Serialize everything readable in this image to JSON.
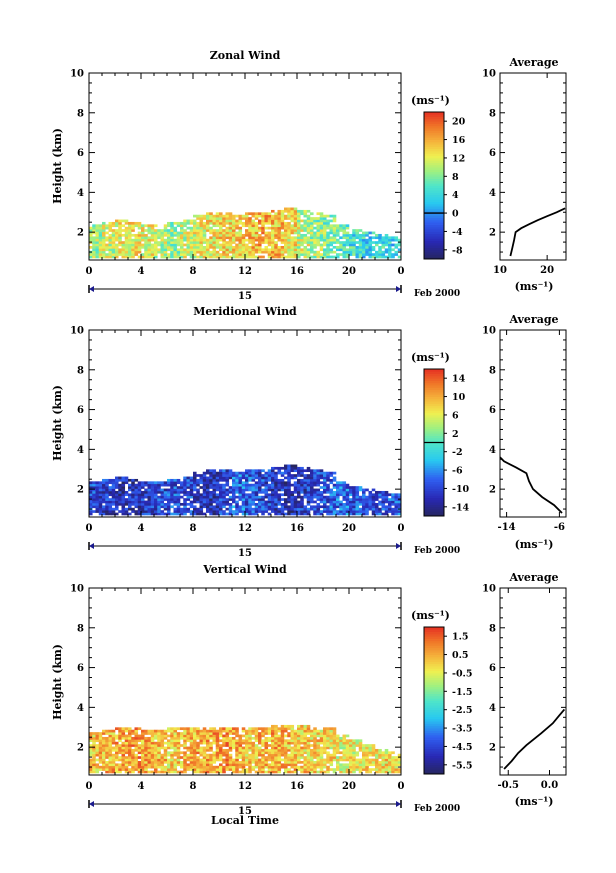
{
  "chart_data": [
    {
      "type": "heatmap",
      "title": "Zonal Wind",
      "ylabel": "Height (km)",
      "ylim": [
        0.6,
        10
      ],
      "yticks": [
        "2",
        "4",
        "6",
        "8",
        "10"
      ],
      "xlim": [
        0,
        24
      ],
      "xticks": [
        "0",
        "4",
        "8",
        "12",
        "16",
        "20",
        "0"
      ],
      "date_label": "15",
      "month_label": "Feb 2000",
      "colorbar": {
        "unit": "(ms⁻¹)",
        "min": -10,
        "max": 22,
        "ticks": [
          "-8",
          "-4",
          "0",
          "4",
          "8",
          "12",
          "16",
          "20"
        ],
        "marker": 0
      },
      "data_top_km": [
        2.4,
        2.6,
        2.7,
        2.6,
        2.5,
        2.5,
        2.6,
        2.7,
        2.9,
        3.0,
        3.0,
        2.9,
        3.0,
        3.1,
        3.2,
        3.3,
        3.2,
        3.1,
        2.9,
        2.5,
        2.2,
        2.1,
        2.0,
        1.9
      ],
      "typical_values": [
        10,
        11,
        12,
        13,
        12,
        10,
        9,
        11,
        12,
        13,
        14,
        14,
        15,
        16,
        15,
        13,
        11,
        9,
        8,
        6,
        5,
        4,
        4,
        3
      ],
      "average": {
        "title": "Average",
        "xlabel": "(ms⁻¹)",
        "xlim": [
          10,
          24
        ],
        "xticks": [
          "10",
          "20"
        ],
        "ylim": [
          0.6,
          10
        ],
        "yticks": [
          "2",
          "4",
          "6",
          "8",
          "10"
        ],
        "profile": [
          [
            12.2,
            0.8
          ],
          [
            12.6,
            1.2
          ],
          [
            13.0,
            1.6
          ],
          [
            13.3,
            2.0
          ],
          [
            14.5,
            2.2
          ],
          [
            16.2,
            2.4
          ],
          [
            18.0,
            2.6
          ],
          [
            20.0,
            2.8
          ],
          [
            22.0,
            3.0
          ],
          [
            23.8,
            3.2
          ]
        ]
      }
    },
    {
      "type": "heatmap",
      "title": "Meridional Wind",
      "ylabel": "Height (km)",
      "ylim": [
        0.6,
        10
      ],
      "yticks": [
        "2",
        "4",
        "6",
        "8",
        "10"
      ],
      "xlim": [
        0,
        24
      ],
      "xticks": [
        "0",
        "4",
        "8",
        "12",
        "16",
        "20",
        "0"
      ],
      "date_label": "15",
      "month_label": "Feb 2000",
      "colorbar": {
        "unit": "(ms⁻¹)",
        "min": -16,
        "max": 16,
        "ticks": [
          "-14",
          "-10",
          "-6",
          "-2",
          "2",
          "6",
          "10",
          "14"
        ],
        "marker": 0
      },
      "data_top_km": [
        2.4,
        2.6,
        2.7,
        2.6,
        2.5,
        2.5,
        2.6,
        2.7,
        2.9,
        3.0,
        3.0,
        2.9,
        3.0,
        3.1,
        3.2,
        3.3,
        3.2,
        3.1,
        2.9,
        2.5,
        2.2,
        2.1,
        2.0,
        1.9
      ],
      "typical_values": [
        -10,
        -11,
        -12,
        -12,
        -11,
        -10,
        -9,
        -10,
        -11,
        -12,
        -10,
        -8,
        -9,
        -10,
        -11,
        -12,
        -11,
        -10,
        -9,
        -8,
        -9,
        -10,
        -10,
        -9
      ],
      "average": {
        "title": "Average",
        "xlabel": "(ms⁻¹)",
        "xlim": [
          -15,
          -5
        ],
        "xticks": [
          "-14",
          "-6"
        ],
        "ylim": [
          0.6,
          10
        ],
        "yticks": [
          "2",
          "4",
          "6",
          "8",
          "10"
        ],
        "profile": [
          [
            -5.6,
            0.8
          ],
          [
            -6.8,
            1.2
          ],
          [
            -8.6,
            1.6
          ],
          [
            -10.0,
            2.0
          ],
          [
            -10.6,
            2.4
          ],
          [
            -11.0,
            2.8
          ],
          [
            -12.6,
            3.1
          ],
          [
            -14.4,
            3.4
          ],
          [
            -15.0,
            3.6
          ]
        ]
      }
    },
    {
      "type": "heatmap",
      "title": "Vertical Wind",
      "ylabel": "Height (km)",
      "ylim": [
        0.6,
        10
      ],
      "yticks": [
        "2",
        "4",
        "6",
        "8",
        "10"
      ],
      "xlim": [
        0,
        24
      ],
      "xticks": [
        "0",
        "4",
        "8",
        "12",
        "16",
        "20",
        "0"
      ],
      "xlabel": "Local Time",
      "date_label": "15",
      "month_label": "Feb 2000",
      "colorbar": {
        "unit": "(ms⁻¹)",
        "min": -6.0,
        "max": 2.0,
        "ticks": [
          "-5.5",
          "-4.5",
          "-3.5",
          "-2.5",
          "-1.5",
          "-0.5",
          "0.5",
          "1.5"
        ],
        "marker": null
      },
      "data_top_km": [
        2.8,
        2.9,
        3.0,
        3.0,
        2.9,
        2.9,
        3.0,
        3.0,
        3.0,
        3.1,
        3.1,
        3.0,
        3.1,
        3.1,
        3.2,
        3.2,
        3.2,
        3.1,
        3.0,
        2.7,
        2.4,
        2.2,
        2.0,
        1.8
      ],
      "typical_values": [
        0.2,
        0.4,
        0.6,
        0.7,
        0.5,
        0.3,
        0.0,
        0.3,
        0.5,
        0.6,
        0.7,
        0.5,
        0.2,
        0.4,
        0.5,
        0.3,
        0.1,
        0.0,
        -0.2,
        -0.4,
        -0.3,
        -0.2,
        -0.1,
        0.0
      ],
      "average": {
        "title": "Average",
        "xlabel": "(ms⁻¹)",
        "xlim": [
          -0.6,
          0.2
        ],
        "xticks": [
          "-0.5",
          "0.0"
        ],
        "ylim": [
          0.6,
          10
        ],
        "yticks": [
          "2",
          "4",
          "6",
          "8",
          "10"
        ],
        "profile": [
          [
            -0.55,
            0.9
          ],
          [
            -0.46,
            1.3
          ],
          [
            -0.38,
            1.7
          ],
          [
            -0.28,
            2.1
          ],
          [
            -0.1,
            2.7
          ],
          [
            0.04,
            3.2
          ],
          [
            0.12,
            3.6
          ],
          [
            0.18,
            3.9
          ]
        ]
      }
    }
  ]
}
